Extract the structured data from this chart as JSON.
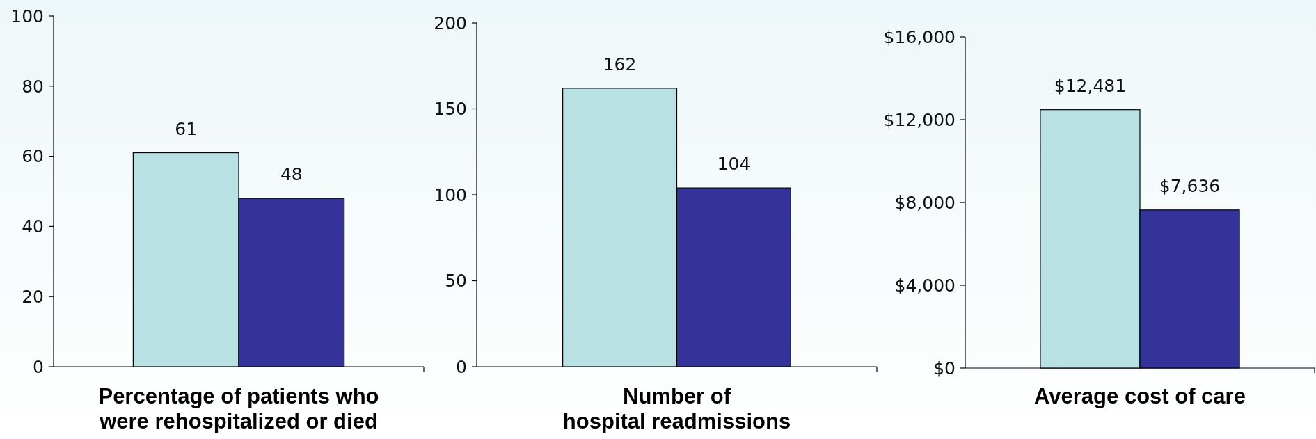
{
  "chart_data": [
    {
      "type": "bar",
      "xlabel": "Percentage of patients who\nwere rehospitalized or died",
      "categories": [
        null,
        null
      ],
      "values": [
        61,
        48
      ],
      "colors": [
        "#b9e0e3",
        "#333399"
      ],
      "ylim": [
        0,
        100
      ],
      "yticks": [
        0,
        20,
        40,
        60,
        80,
        100
      ],
      "data_labels": true
    },
    {
      "type": "bar",
      "xlabel": "Number of\nhospital readmissions",
      "categories": [
        null,
        null
      ],
      "values": [
        162,
        104
      ],
      "colors": [
        "#b9e0e3",
        "#333399"
      ],
      "ylim": [
        0,
        200
      ],
      "yticks": [
        0,
        50,
        100,
        150,
        200
      ],
      "data_labels": true
    },
    {
      "type": "bar",
      "xlabel": "Average cost of care",
      "categories": [
        null,
        null
      ],
      "values": [
        12481,
        7636
      ],
      "colors": [
        "#b9e0e3",
        "#333399"
      ],
      "ylim": [
        0,
        16000
      ],
      "yticks": [
        {
          "value": 0,
          "label": "$0"
        },
        {
          "value": 4000,
          "label": "$4,000"
        },
        {
          "value": 8000,
          "label": "$8,000"
        },
        {
          "value": 12000,
          "label": "$12,000"
        },
        {
          "value": 16000,
          "label": "$16,000"
        }
      ],
      "value_labels": [
        "$12,481",
        "$7,636"
      ]
    }
  ]
}
